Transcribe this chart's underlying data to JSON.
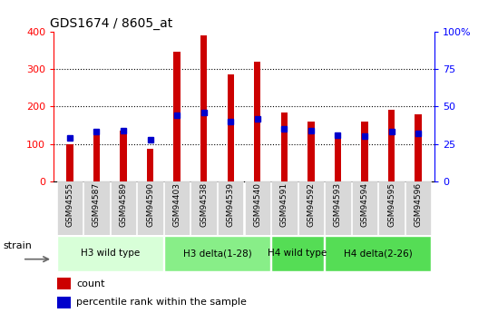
{
  "title": "GDS1674 / 8605_at",
  "samples": [
    "GSM94555",
    "GSM94587",
    "GSM94589",
    "GSM94590",
    "GSM94403",
    "GSM94538",
    "GSM94539",
    "GSM94540",
    "GSM94591",
    "GSM94592",
    "GSM94593",
    "GSM94594",
    "GSM94595",
    "GSM94596"
  ],
  "count": [
    100,
    130,
    135,
    88,
    345,
    390,
    285,
    320,
    183,
    160,
    125,
    160,
    190,
    178
  ],
  "percentile": [
    29,
    33,
    34,
    28,
    44,
    46,
    40,
    42,
    35,
    34,
    31,
    30,
    33,
    32
  ],
  "group_info": [
    {
      "label": "H3 wild type",
      "start": 0,
      "end": 3,
      "color": "#d8ffd8"
    },
    {
      "label": "H3 delta(1-28)",
      "start": 4,
      "end": 7,
      "color": "#88ee88"
    },
    {
      "label": "H4 wild type",
      "start": 8,
      "end": 9,
      "color": "#55dd55"
    },
    {
      "label": "H4 delta(2-26)",
      "start": 10,
      "end": 13,
      "color": "#55dd55"
    }
  ],
  "left_ylim": [
    0,
    400
  ],
  "right_ylim": [
    0,
    100
  ],
  "left_yticks": [
    0,
    100,
    200,
    300,
    400
  ],
  "right_yticks": [
    0,
    25,
    50,
    75,
    100
  ],
  "right_yticklabels": [
    "0",
    "25",
    "50",
    "75",
    "100%"
  ],
  "bar_color": "#cc0000",
  "percentile_color": "#0000cc",
  "title_fontsize": 10,
  "strain_label": "strain",
  "legend_count": "count",
  "legend_percentile": "percentile rank within the sample",
  "bar_width": 0.25
}
